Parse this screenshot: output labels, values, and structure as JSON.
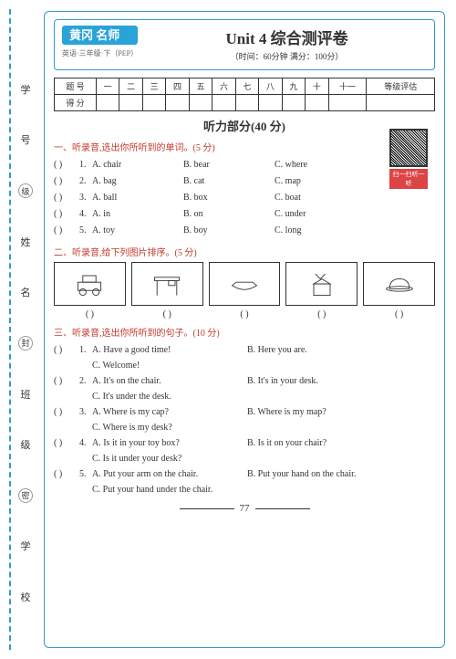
{
  "badge": "黄冈\n名师",
  "sub_badge": "英语·三年级·下（PEP）",
  "title": "Unit 4 综合测评卷",
  "subtitle": "（时间：60分钟 满分：100分）",
  "table_h": [
    "题 号",
    "一",
    "二",
    "三",
    "四",
    "五",
    "六",
    "七",
    "八",
    "九",
    "十",
    "十一",
    "等级评估"
  ],
  "table_r": "得 分",
  "listening": "听力部分(40 分)",
  "qr_label": "扫一扫听一听",
  "s1": {
    "title": "一、听录音,选出你所听到的单词。(5 分)",
    "items": [
      {
        "n": "1.",
        "a": "A. chair",
        "b": "B. bear",
        "c": "C. where"
      },
      {
        "n": "2.",
        "a": "A. bag",
        "b": "B. cat",
        "c": "C. map"
      },
      {
        "n": "3.",
        "a": "A. ball",
        "b": "B. box",
        "c": "C. boat"
      },
      {
        "n": "4.",
        "a": "A. in",
        "b": "B. on",
        "c": "C. under"
      },
      {
        "n": "5.",
        "a": "A. toy",
        "b": "B. boy",
        "c": "C. long"
      }
    ]
  },
  "s2": {
    "title": "二、听录音,给下列图片排序。(5 分)",
    "paren": "(        )"
  },
  "s3": {
    "title": "三、听录音,选出你所听到的句子。(10 分)",
    "items": [
      {
        "n": "1.",
        "a": "A. Have a good time!",
        "b": "B. Here you are.",
        "c": "C. Welcome!"
      },
      {
        "n": "2.",
        "a": "A. It's on the chair.",
        "b": "B. It's in your desk.",
        "c": "C. It's under the desk."
      },
      {
        "n": "3.",
        "a": "A. Where is my cap?",
        "b": "B. Where is my map?",
        "c": "C. Where is my desk?"
      },
      {
        "n": "4.",
        "a": "A. Is it in your toy box?",
        "b": "B. Is it on your chair?",
        "c": "C. Is it under your desk?"
      },
      {
        "n": "5.",
        "a": "A. Put your arm on the chair.",
        "b": "B. Put your hand on the chair.",
        "c": "C. Put your hand under the chair."
      }
    ]
  },
  "left": [
    "学",
    "号",
    "级",
    "姓",
    "名",
    "封",
    "班",
    "级",
    "密",
    "学",
    "校"
  ],
  "page_num": "77",
  "paren": "(       )"
}
